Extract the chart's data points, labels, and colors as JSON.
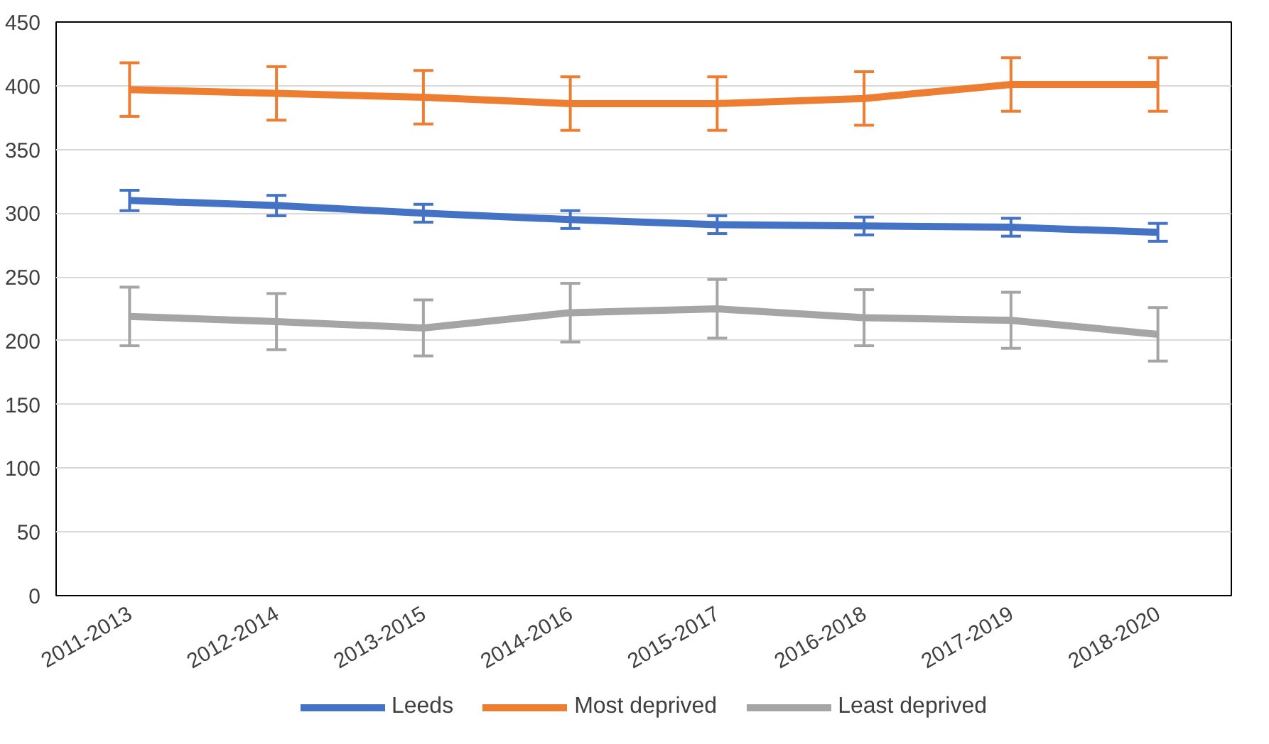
{
  "chart_data": {
    "type": "line",
    "categories": [
      "2011-2013",
      "2012-2014",
      "2013-2015",
      "2014-2016",
      "2015-2017",
      "2016-2018",
      "2017-2019",
      "2018-2020"
    ],
    "series": [
      {
        "name": "Leeds",
        "color": "#4472c4",
        "values": [
          310,
          306,
          300,
          295,
          291,
          290,
          289,
          285
        ],
        "errors": [
          8,
          8,
          7,
          7,
          7,
          7,
          7,
          7
        ]
      },
      {
        "name": "Most deprived",
        "color": "#ed7d31",
        "values": [
          397,
          394,
          391,
          386,
          386,
          390,
          401,
          401
        ],
        "errors": [
          21,
          21,
          21,
          21,
          21,
          21,
          21,
          21
        ]
      },
      {
        "name": "Least deprived",
        "color": "#a5a5a5",
        "values": [
          219,
          215,
          210,
          222,
          225,
          218,
          216,
          205
        ],
        "errors": [
          23,
          22,
          22,
          23,
          23,
          22,
          22,
          21
        ]
      }
    ],
    "ylim": [
      0,
      450
    ],
    "yticks": [
      0,
      50,
      100,
      150,
      200,
      250,
      300,
      350,
      400,
      450
    ],
    "grid": "y",
    "legend": "bottom",
    "marker": "none",
    "line_style": "solid"
  }
}
